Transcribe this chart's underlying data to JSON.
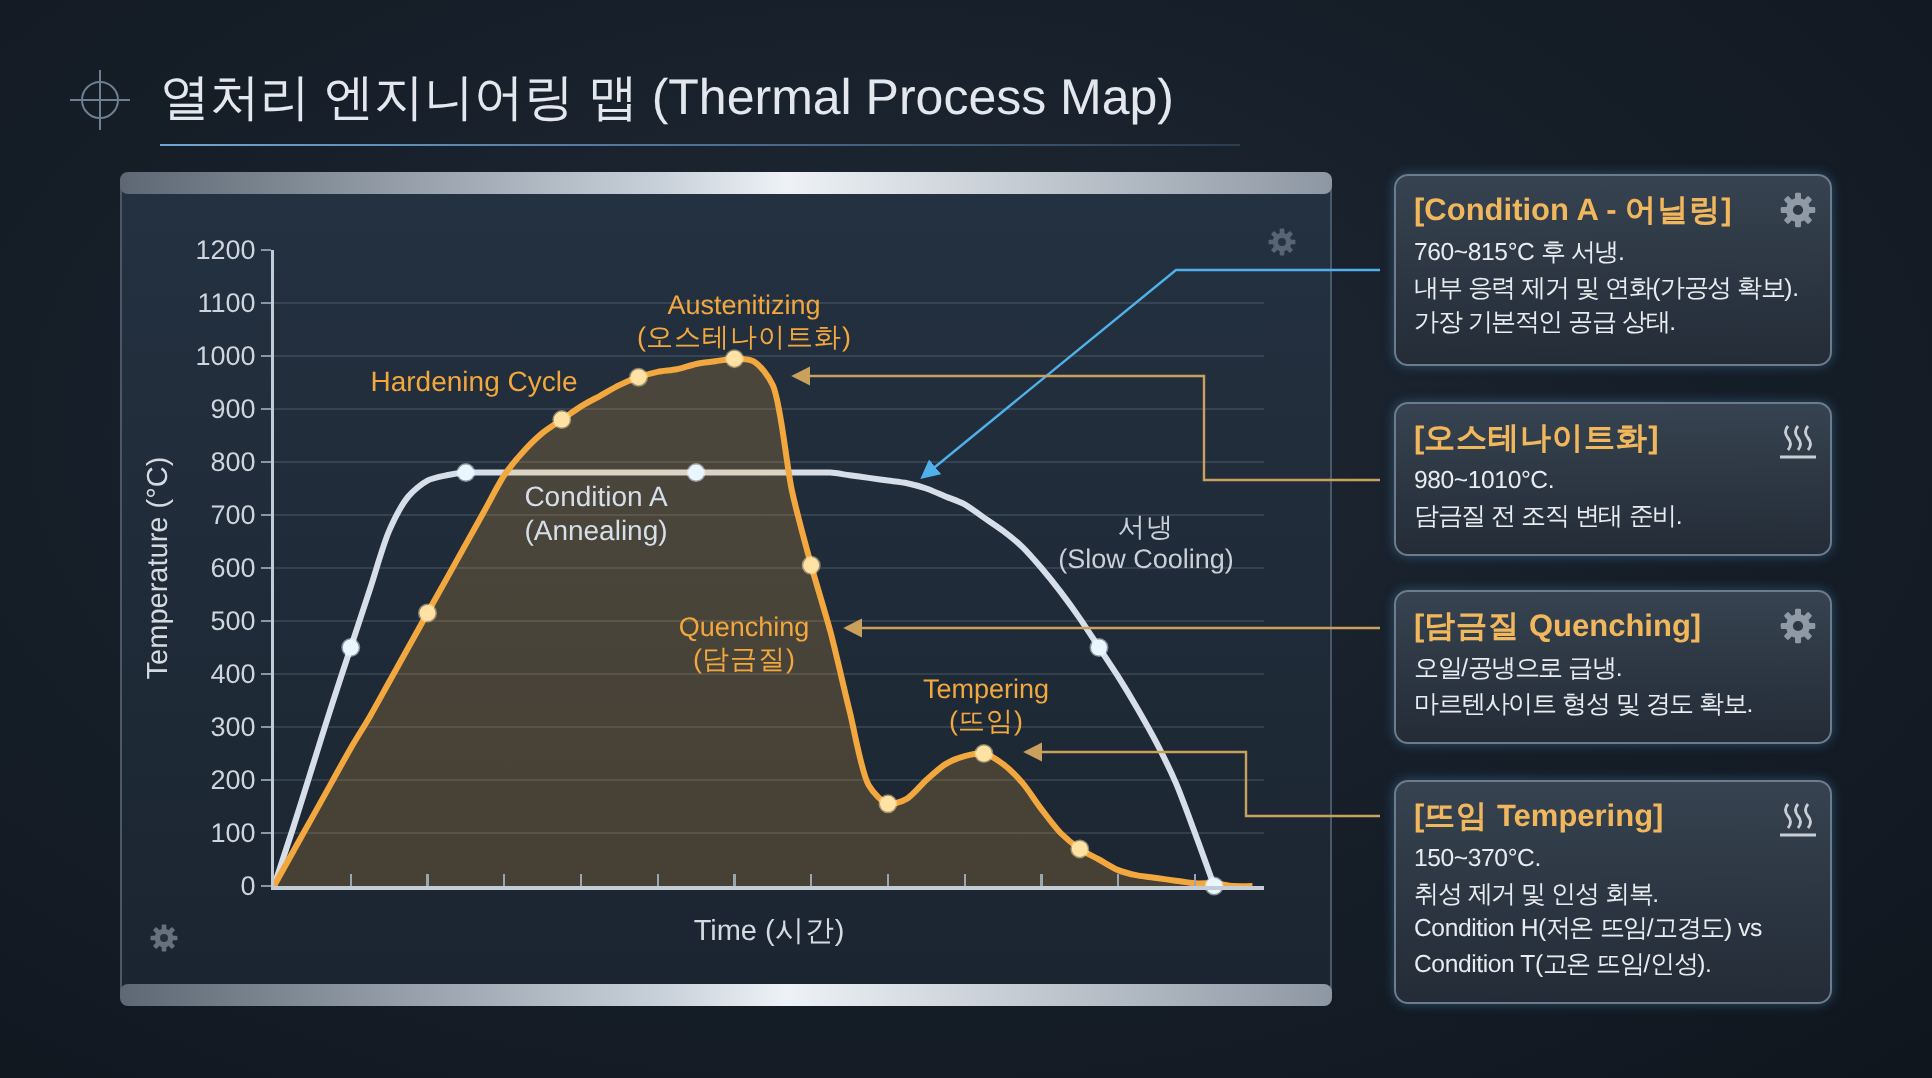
{
  "chart_data": {
    "type": "line",
    "title": "열처리 엔지니어링 맵 (Thermal Process Map)",
    "xlabel": "Time (시간)",
    "ylabel": "Temperature (°C)",
    "categories": [
      null,
      null,
      null,
      null,
      null,
      null,
      null,
      null,
      null,
      null,
      null,
      null,
      null,
      null,
      null,
      null,
      null,
      null,
      null,
      null,
      null,
      null,
      null,
      null,
      null,
      null,
      null,
      null,
      null,
      null,
      null,
      null,
      null,
      null,
      null,
      null,
      null,
      null,
      null,
      null,
      null,
      null,
      null,
      null,
      null,
      null,
      null,
      null,
      null,
      null,
      null,
      null
    ],
    "series": [
      {
        "name": "Condition A\n(Annealing)",
        "color": "#d6dfe9",
        "values": [
          0,
          110,
          225,
          340,
          450,
          560,
          670,
          735,
          765,
          775,
          780,
          780,
          780,
          780,
          780,
          780,
          780,
          780,
          780,
          780,
          780,
          780,
          780,
          780,
          780,
          780,
          780,
          780,
          780,
          780,
          775,
          770,
          765,
          760,
          750,
          735,
          720,
          695,
          670,
          640,
          600,
          555,
          505,
          450,
          395,
          335,
          270,
          195,
          100,
          0,
          null,
          null
        ]
      },
      {
        "name": "Hardening Cycle",
        "type": "area",
        "color": "#f2a83e",
        "values": [
          0,
          65,
          130,
          195,
          260,
          320,
          385,
          450,
          515,
          580,
          645,
          710,
          775,
          820,
          855,
          880,
          905,
          925,
          945,
          960,
          970,
          975,
          985,
          990,
          995,
          990,
          945,
          745,
          605,
          480,
          330,
          190,
          155,
          165,
          200,
          230,
          245,
          250,
          230,
          195,
          145,
          100,
          70,
          50,
          30,
          20,
          15,
          10,
          5,
          5,
          0,
          0
        ]
      },
      {
        "type": "scatter",
        "marker": "circle",
        "color": "#eaf6ff",
        "values": [
          null,
          null,
          null,
          null,
          450,
          null,
          null,
          null,
          null,
          null,
          780,
          null,
          null,
          null,
          null,
          null,
          null,
          null,
          null,
          null,
          null,
          null,
          780,
          null,
          null,
          null,
          null,
          null,
          null,
          null,
          null,
          null,
          null,
          null,
          null,
          null,
          null,
          null,
          null,
          null,
          null,
          null,
          null,
          450,
          null,
          null,
          null,
          null,
          null,
          0,
          null,
          null
        ]
      },
      {
        "type": "scatter",
        "marker": "circle",
        "color": "#ffe2a4",
        "values": [
          null,
          null,
          null,
          null,
          null,
          null,
          null,
          null,
          515,
          null,
          null,
          null,
          null,
          null,
          null,
          880,
          null,
          null,
          null,
          960,
          null,
          null,
          null,
          null,
          995,
          null,
          null,
          null,
          605,
          null,
          null,
          null,
          155,
          null,
          null,
          null,
          null,
          250,
          null,
          null,
          null,
          null,
          70,
          null,
          null,
          null,
          null,
          null,
          null,
          null,
          null,
          null
        ]
      }
    ],
    "ylim": [
      0,
      1200
    ],
    "yticks": [
      0,
      100,
      200,
      300,
      400,
      500,
      600,
      700,
      800,
      900,
      1000,
      1100,
      1200
    ],
    "grid": "y",
    "legend": false,
    "tick_labels": "y",
    "line_style": "solid",
    "annotations": [
      "Austenitizing\n(오스테나이트화)",
      "Quenching\n(담금질)",
      "Tempering\n(뜨임)",
      "서냉\n(Slow Cooling)",
      "[Condition A - 어닐링]",
      "760~815°C 후 서냉.\n내부 응력 제거 및 연화(가공성 확보).\n가장 기본적인 공급 상태.",
      "[오스테나이트화]",
      "980~1010°C.\n담금질 전 조직 변태 준비.",
      "[담금질 Quenching]",
      "오일/공냉으로 급냉.\n마르텐사이트 형성 및 경도 확보.",
      "[뜨임 Tempering]",
      "150~370°C.\n취성 제거 및 인성 회복.\nCondition H(저온 뜨임/고경도) vs\nCondition T(고온 뜨임/인성)."
    ]
  }
}
